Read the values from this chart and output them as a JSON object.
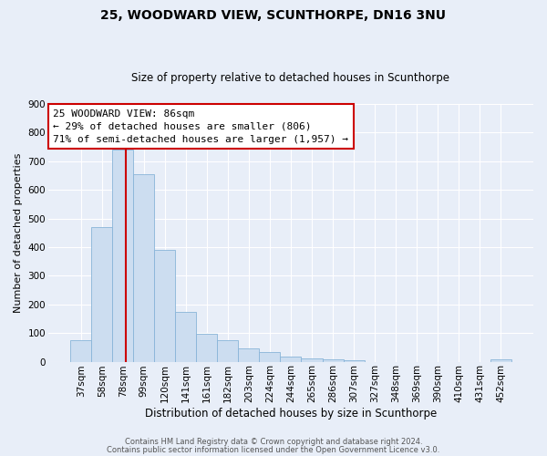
{
  "title": "25, WOODWARD VIEW, SCUNTHORPE, DN16 3NU",
  "subtitle": "Size of property relative to detached houses in Scunthorpe",
  "xlabel": "Distribution of detached houses by size in Scunthorpe",
  "ylabel": "Number of detached properties",
  "bin_labels": [
    "37sqm",
    "58sqm",
    "78sqm",
    "99sqm",
    "120sqm",
    "141sqm",
    "161sqm",
    "182sqm",
    "203sqm",
    "224sqm",
    "244sqm",
    "265sqm",
    "286sqm",
    "307sqm",
    "327sqm",
    "348sqm",
    "369sqm",
    "390sqm",
    "410sqm",
    "431sqm",
    "452sqm"
  ],
  "bar_values": [
    75,
    470,
    740,
    655,
    390,
    175,
    97,
    75,
    47,
    33,
    18,
    10,
    7,
    5,
    0,
    0,
    0,
    0,
    0,
    0,
    8
  ],
  "bar_color": "#ccddf0",
  "bar_edge_color": "#88b4d8",
  "vline_color": "#cc0000",
  "vline_x": 2.15,
  "box_edge_color": "#cc0000",
  "annotation_line1": "25 WOODWARD VIEW: 86sqm",
  "annotation_line2": "← 29% of detached houses are smaller (806)",
  "annotation_line3": "71% of semi-detached houses are larger (1,957) →",
  "ylim": [
    0,
    900
  ],
  "yticks": [
    0,
    100,
    200,
    300,
    400,
    500,
    600,
    700,
    800,
    900
  ],
  "footer_line1": "Contains HM Land Registry data © Crown copyright and database right 2024.",
  "footer_line2": "Contains public sector information licensed under the Open Government Licence v3.0.",
  "background_color": "#e8eef8",
  "plot_background_color": "#e8eef8",
  "title_fontsize": 10,
  "subtitle_fontsize": 8.5,
  "xlabel_fontsize": 8.5,
  "ylabel_fontsize": 8,
  "tick_fontsize": 7.5,
  "annotation_fontsize": 8,
  "footer_fontsize": 6
}
